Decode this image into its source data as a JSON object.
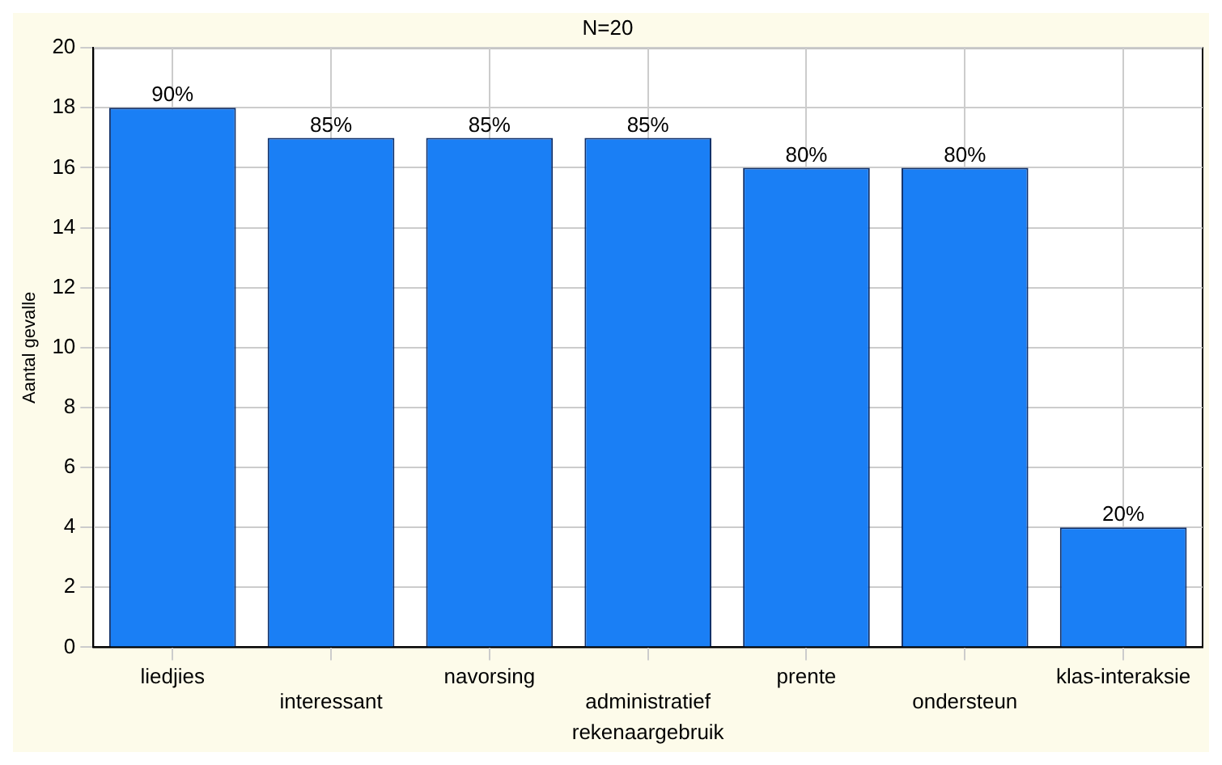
{
  "chart_data": {
    "type": "bar",
    "title": "N=20",
    "xlabel": "rekenaargebruik",
    "ylabel": "Aantal gevalle",
    "categories": [
      "liedjies",
      "interessant",
      "navorsing",
      "administratief",
      "prente",
      "ondersteun",
      "klas-interaksie"
    ],
    "values": [
      18,
      17,
      17,
      17,
      16,
      16,
      4
    ],
    "annotations": [
      {
        "text": "90%",
        "x": "liedjies",
        "y": 18
      },
      {
        "text": "85%",
        "x": "interessant",
        "y": 17
      },
      {
        "text": "85%",
        "x": "navorsing",
        "y": 17
      },
      {
        "text": "85%",
        "x": "administratief",
        "y": 17
      },
      {
        "text": "80%",
        "x": "prente",
        "y": 16
      },
      {
        "text": "80%",
        "x": "ondersteun",
        "y": 16
      },
      {
        "text": "20%",
        "x": "klas-interaksie",
        "y": 4
      }
    ],
    "color": "#1a7ff5",
    "ylim": [
      0,
      20
    ],
    "yticks": [
      0,
      2,
      4,
      6,
      8,
      10,
      12,
      14,
      16,
      18,
      20
    ],
    "grid": true,
    "legend": false
  }
}
